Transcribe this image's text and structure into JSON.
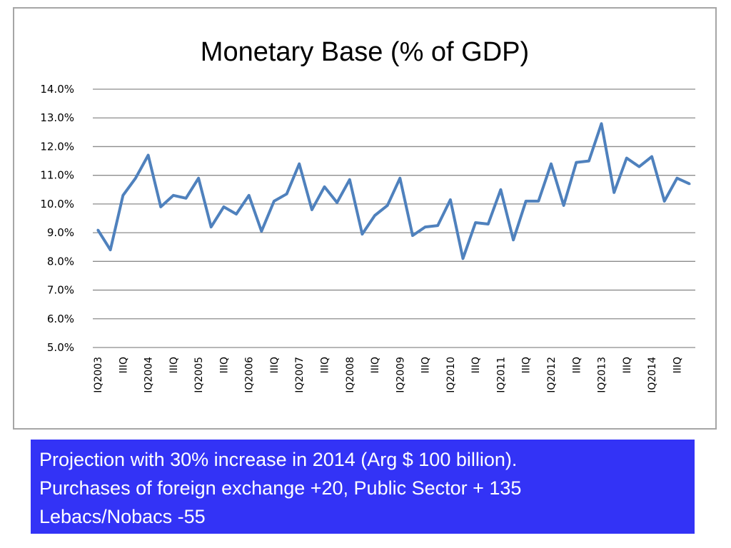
{
  "chart_data": {
    "type": "line",
    "title": "Monetary Base (% of GDP)",
    "xlabel": "",
    "ylabel": "",
    "ylim": [
      5.0,
      14.0
    ],
    "yticks": [
      "14.0%",
      "13.0%",
      "12.0%",
      "11.0%",
      "10.0%",
      "9.0%",
      "8.0%",
      "7.0%",
      "6.0%",
      "5.0%"
    ],
    "ytick_values": [
      14,
      13,
      12,
      11,
      10,
      9,
      8,
      7,
      6,
      5
    ],
    "grid": true,
    "series": [
      {
        "name": "Monetary Base (% of GDP)",
        "color": "#4f81bd",
        "values": [
          9.1,
          8.4,
          10.3,
          10.9,
          11.7,
          9.9,
          10.3,
          10.2,
          10.9,
          9.2,
          9.9,
          9.65,
          10.3,
          9.05,
          10.1,
          10.35,
          11.4,
          9.8,
          10.6,
          10.05,
          10.85,
          8.95,
          9.6,
          9.95,
          10.9,
          8.9,
          9.2,
          9.25,
          10.15,
          8.1,
          9.35,
          9.3,
          10.5,
          8.75,
          10.1,
          10.1,
          11.4,
          9.95,
          11.45,
          11.5,
          12.8,
          10.4,
          11.6,
          11.3,
          11.65,
          10.1,
          10.9,
          10.7
        ]
      }
    ],
    "x_count": 48,
    "x_tick_labels": [
      {
        "index": 0,
        "text": "IQ2003"
      },
      {
        "index": 2,
        "text": "IIIQ"
      },
      {
        "index": 4,
        "text": "IQ2004"
      },
      {
        "index": 6,
        "text": "IIIQ"
      },
      {
        "index": 8,
        "text": "IQ2005"
      },
      {
        "index": 10,
        "text": "IIIQ"
      },
      {
        "index": 12,
        "text": "IQ2006"
      },
      {
        "index": 14,
        "text": "IIIQ"
      },
      {
        "index": 16,
        "text": "IQ2007"
      },
      {
        "index": 18,
        "text": "IIIQ"
      },
      {
        "index": 20,
        "text": "IQ2008"
      },
      {
        "index": 22,
        "text": "IIIQ"
      },
      {
        "index": 24,
        "text": "IQ2009"
      },
      {
        "index": 26,
        "text": "IIIQ"
      },
      {
        "index": 28,
        "text": "IQ2010"
      },
      {
        "index": 30,
        "text": "IIIQ"
      },
      {
        "index": 32,
        "text": "IQ2011"
      },
      {
        "index": 34,
        "text": "IIIQ"
      },
      {
        "index": 36,
        "text": "IQ2012"
      },
      {
        "index": 38,
        "text": "IIIQ"
      },
      {
        "index": 40,
        "text": "IQ2013"
      },
      {
        "index": 42,
        "text": "IIIQ"
      },
      {
        "index": 44,
        "text": "IQ2014"
      },
      {
        "index": 46,
        "text": "IIIQ"
      }
    ]
  },
  "note": {
    "lines": [
      "Projection with 30% increase in 2014 (Arg $ 100 billion).",
      "Purchases of foreign exchange +20, Public Sector + 135",
      "Lebacs/Nobacs -55"
    ]
  }
}
